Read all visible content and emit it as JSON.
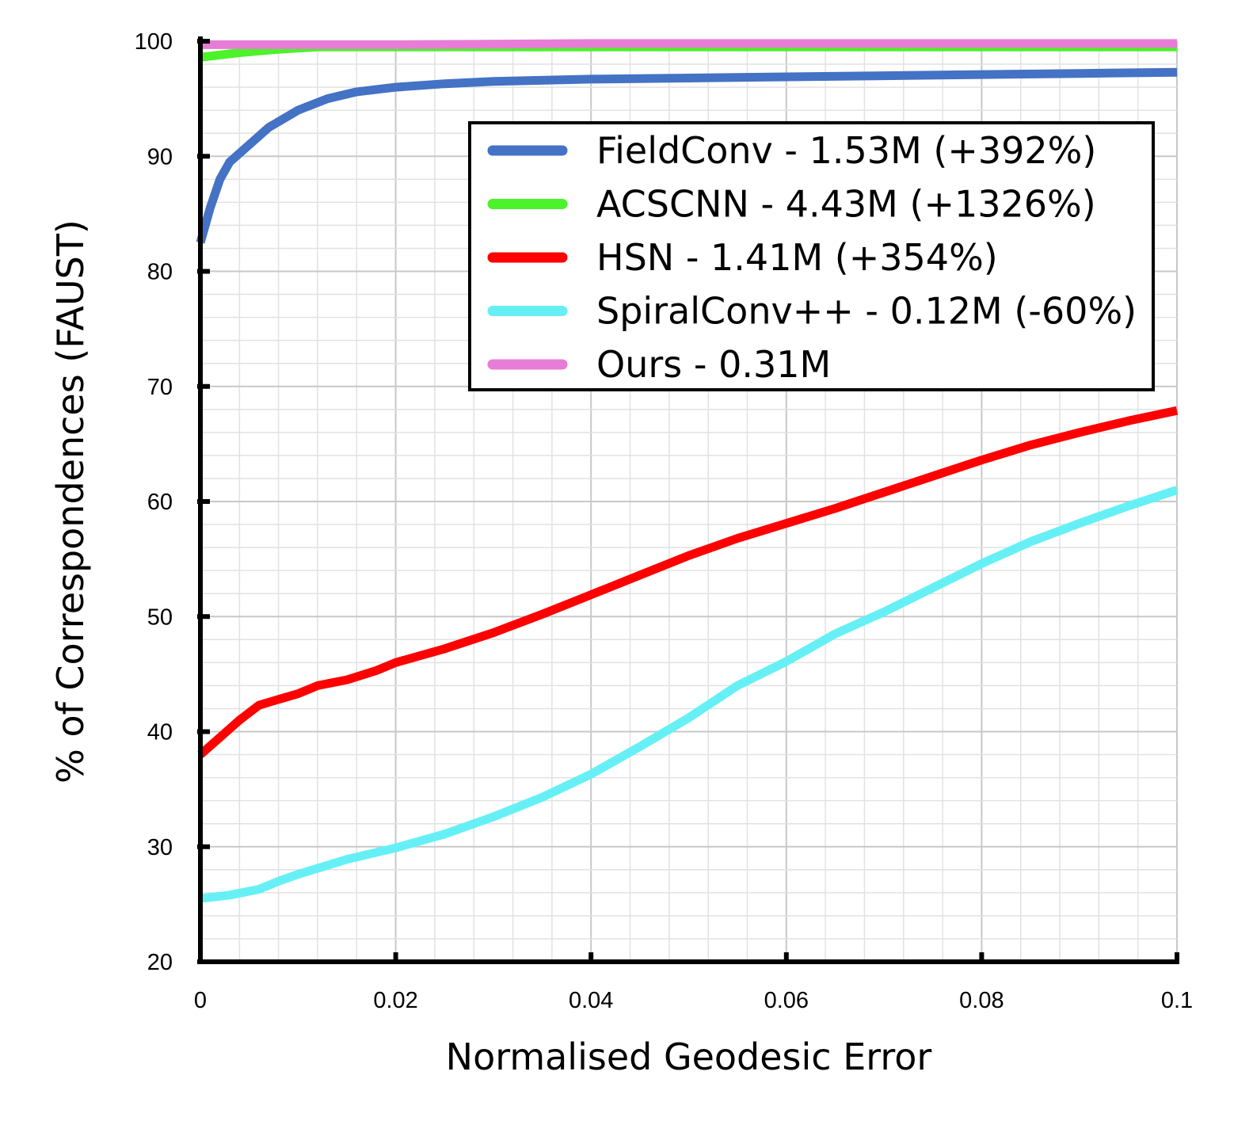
{
  "chart_data": {
    "type": "line",
    "title": "",
    "xlabel": "Normalised Geodesic Error",
    "ylabel": "% of Correspondences (FAUST)",
    "xlim": [
      0,
      0.1
    ],
    "ylim": [
      20,
      100
    ],
    "x_ticks": [
      0,
      0.02,
      0.04,
      0.06,
      0.08,
      0.1
    ],
    "x_tick_labels": [
      "0",
      "0.02",
      "0.04",
      "0.06",
      "0.08",
      "0.1"
    ],
    "y_ticks": [
      20,
      30,
      40,
      50,
      60,
      70,
      80,
      90,
      100
    ],
    "y_tick_labels": [
      "20",
      "30",
      "40",
      "50",
      "60",
      "70",
      "80",
      "90",
      "100"
    ],
    "grid": true,
    "legend_position": "top-right",
    "series": [
      {
        "name": "FieldConv - 1.53M (+392%)",
        "color": "#4472C4",
        "points": [
          [
            0,
            82.5
          ],
          [
            0.001,
            85.5
          ],
          [
            0.002,
            88
          ],
          [
            0.003,
            89.5
          ],
          [
            0.005,
            91
          ],
          [
            0.007,
            92.5
          ],
          [
            0.01,
            94
          ],
          [
            0.013,
            95
          ],
          [
            0.016,
            95.6
          ],
          [
            0.02,
            96
          ],
          [
            0.025,
            96.3
          ],
          [
            0.03,
            96.5
          ],
          [
            0.04,
            96.7
          ],
          [
            0.05,
            96.8
          ],
          [
            0.06,
            96.9
          ],
          [
            0.07,
            97
          ],
          [
            0.08,
            97.1
          ],
          [
            0.09,
            97.2
          ],
          [
            0.1,
            97.3
          ]
        ]
      },
      {
        "name": "ACSCNN - 4.43M (+1326%)",
        "color": "#4CF22A",
        "points": [
          [
            0,
            98.6
          ],
          [
            0.004,
            99
          ],
          [
            0.008,
            99.3
          ],
          [
            0.012,
            99.5
          ],
          [
            0.02,
            99.5
          ],
          [
            0.04,
            99.5
          ],
          [
            0.06,
            99.5
          ],
          [
            0.08,
            99.5
          ],
          [
            0.1,
            99.5
          ]
        ]
      },
      {
        "name": "HSN - 1.41M (+354%)",
        "color": "#FF0000",
        "points": [
          [
            0,
            38
          ],
          [
            0.002,
            39.5
          ],
          [
            0.004,
            41
          ],
          [
            0.006,
            42.3
          ],
          [
            0.008,
            42.8
          ],
          [
            0.01,
            43.3
          ],
          [
            0.012,
            44
          ],
          [
            0.015,
            44.5
          ],
          [
            0.018,
            45.3
          ],
          [
            0.02,
            46
          ],
          [
            0.025,
            47.2
          ],
          [
            0.03,
            48.6
          ],
          [
            0.035,
            50.2
          ],
          [
            0.04,
            51.9
          ],
          [
            0.045,
            53.6
          ],
          [
            0.05,
            55.3
          ],
          [
            0.055,
            56.8
          ],
          [
            0.06,
            58.1
          ],
          [
            0.065,
            59.4
          ],
          [
            0.07,
            60.8
          ],
          [
            0.075,
            62.2
          ],
          [
            0.08,
            63.6
          ],
          [
            0.085,
            64.9
          ],
          [
            0.09,
            66
          ],
          [
            0.095,
            67
          ],
          [
            0.1,
            67.9
          ]
        ]
      },
      {
        "name": "SpiralConv++ - 0.12M (-60%)",
        "color": "#66F0F5",
        "points": [
          [
            0,
            25.5
          ],
          [
            0.003,
            25.8
          ],
          [
            0.006,
            26.3
          ],
          [
            0.008,
            27
          ],
          [
            0.01,
            27.6
          ],
          [
            0.015,
            28.9
          ],
          [
            0.02,
            29.9
          ],
          [
            0.025,
            31.1
          ],
          [
            0.03,
            32.6
          ],
          [
            0.035,
            34.3
          ],
          [
            0.04,
            36.3
          ],
          [
            0.045,
            38.7
          ],
          [
            0.05,
            41.2
          ],
          [
            0.055,
            44
          ],
          [
            0.06,
            46.1
          ],
          [
            0.065,
            48.5
          ],
          [
            0.07,
            50.4
          ],
          [
            0.075,
            52.5
          ],
          [
            0.08,
            54.6
          ],
          [
            0.085,
            56.5
          ],
          [
            0.09,
            58.1
          ],
          [
            0.095,
            59.6
          ],
          [
            0.1,
            61
          ]
        ]
      },
      {
        "name": "Ours - 0.31M",
        "color": "#E77DD6",
        "points": [
          [
            0,
            99.7
          ],
          [
            0.02,
            99.7
          ],
          [
            0.04,
            99.8
          ],
          [
            0.06,
            99.8
          ],
          [
            0.08,
            99.8
          ],
          [
            0.1,
            99.8
          ]
        ]
      }
    ]
  }
}
